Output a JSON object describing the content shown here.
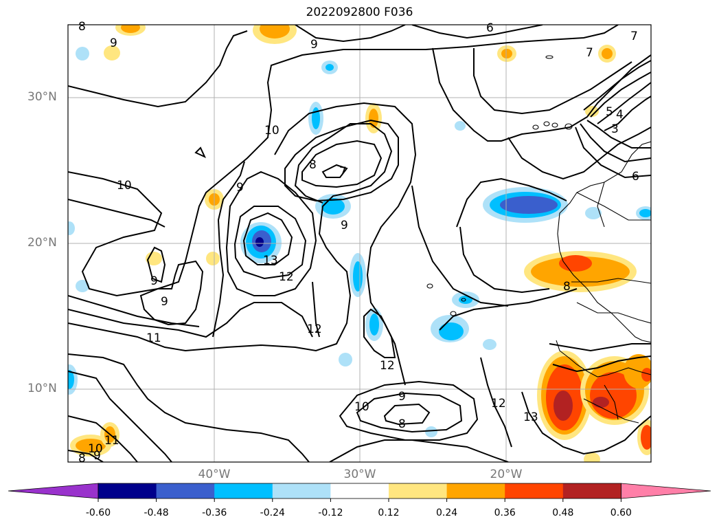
{
  "title": "2022092800 F036",
  "map": {
    "lat_labels": [
      {
        "lat": 30,
        "text": "30°N"
      },
      {
        "lat": 20,
        "text": "20°N"
      },
      {
        "lat": 10,
        "text": "10°N"
      }
    ],
    "lon_labels": [
      {
        "lon": -40,
        "text": "40°W"
      },
      {
        "lon": -30,
        "text": "30°W"
      },
      {
        "lon": -20,
        "text": "20°W"
      }
    ],
    "contour_labels": [
      "8",
      "9",
      "10",
      "10",
      "9",
      "8",
      "7",
      "9",
      "13",
      "12",
      "12",
      "12",
      "11",
      "9",
      "9",
      "9",
      "7",
      "5",
      "4",
      "3",
      "6",
      "8",
      "12",
      "13",
      "10",
      "9",
      "8",
      "11",
      "10",
      "9",
      "8",
      "7",
      "6"
    ]
  },
  "colorbar": {
    "ticks": [
      "-0.60",
      "-0.48",
      "-0.36",
      "-0.24",
      "-0.12",
      "0.12",
      "0.24",
      "0.36",
      "0.48",
      "0.60"
    ],
    "colors": [
      "#9932cc",
      "#00008b",
      "#3a5fcd",
      "#00bfff",
      "#aee1f8",
      "#ffffff",
      "#ffe680",
      "#ffa500",
      "#ff4500",
      "#b22222",
      "#ff7fa8"
    ]
  }
}
